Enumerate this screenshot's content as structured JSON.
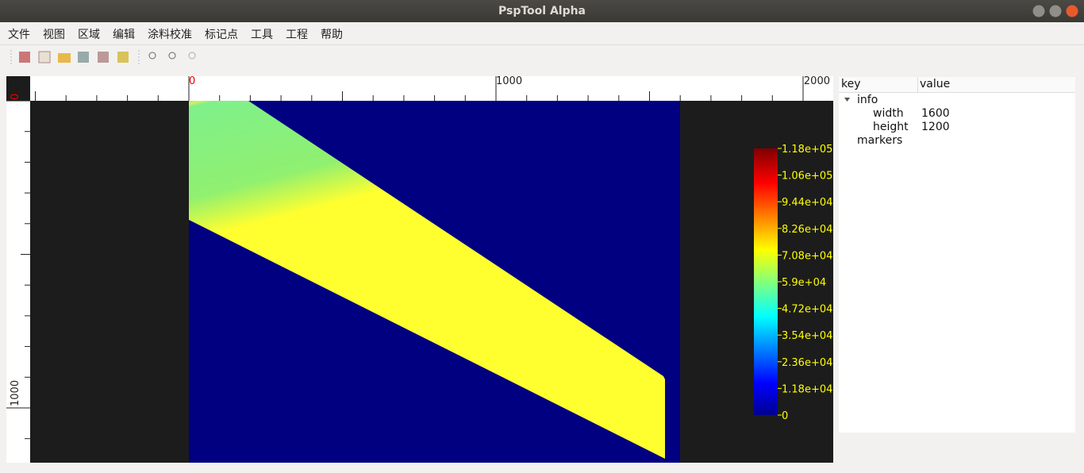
{
  "window": {
    "title": "PspTool Alpha"
  },
  "menu": {
    "items": [
      "文件",
      "视图",
      "区域",
      "编辑",
      "涂料校准",
      "标记点",
      "工具",
      "工程",
      "帮助"
    ]
  },
  "viewer": {
    "top_ruler_labels": [
      "0",
      "1000",
      "2000"
    ],
    "left_ruler_labels": [
      "0",
      "1000"
    ],
    "colorbar_labels": [
      "1.18e+05",
      "1.06e+05",
      "9.44e+04",
      "8.26e+04",
      "7.08e+04",
      "5.9e+04",
      "4.72e+04",
      "3.54e+04",
      "2.36e+04",
      "1.18e+04",
      "0"
    ]
  },
  "tree": {
    "header": [
      "key",
      "value"
    ],
    "rows": [
      {
        "key": "info",
        "level": 0
      },
      {
        "key": "width",
        "value": "1600",
        "level": 1
      },
      {
        "key": "height",
        "value": "1200",
        "level": 1
      },
      {
        "key": "markers",
        "level": 0
      }
    ]
  }
}
